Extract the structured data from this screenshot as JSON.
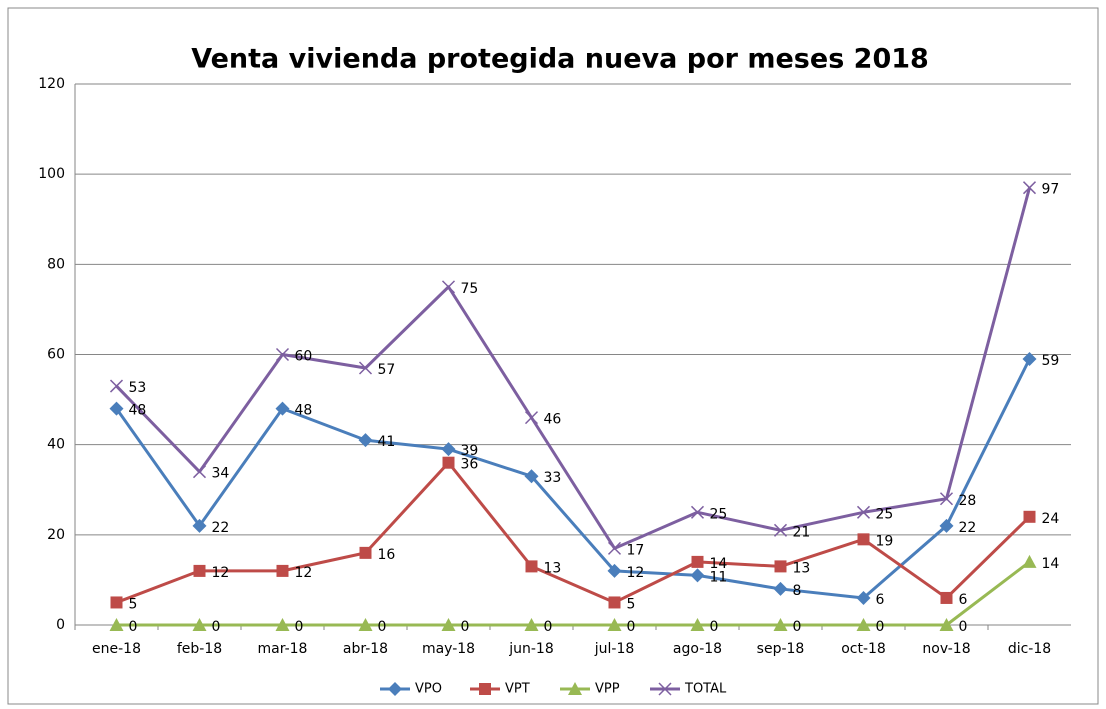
{
  "chart_data": {
    "type": "line",
    "title": "Venta vivienda protegida nueva por meses 2018",
    "categories": [
      "ene-18",
      "feb-18",
      "mar-18",
      "abr-18",
      "may-18",
      "jun-18",
      "jul-18",
      "ago-18",
      "sep-18",
      "oct-18",
      "nov-18",
      "dic-18"
    ],
    "series": [
      {
        "name": "VPO",
        "color": "#4a7ebb",
        "marker": "diamond",
        "values": [
          48,
          22,
          48,
          41,
          39,
          33,
          12,
          11,
          8,
          6,
          22,
          59
        ]
      },
      {
        "name": "VPT",
        "color": "#be4b48",
        "marker": "square",
        "values": [
          5,
          12,
          12,
          16,
          36,
          13,
          5,
          14,
          13,
          19,
          6,
          24
        ]
      },
      {
        "name": "VPP",
        "color": "#98b954",
        "marker": "triangle",
        "values": [
          0,
          0,
          0,
          0,
          0,
          0,
          0,
          0,
          0,
          0,
          0,
          14
        ]
      },
      {
        "name": "TOTAL",
        "color": "#7d5fa0",
        "marker": "x",
        "values": [
          53,
          34,
          60,
          57,
          75,
          46,
          17,
          25,
          21,
          25,
          28,
          97
        ]
      }
    ],
    "ylim": [
      0,
      120
    ],
    "yticks": [
      0,
      20,
      40,
      60,
      80,
      100,
      120
    ],
    "grid": true,
    "legend": "bottom"
  }
}
